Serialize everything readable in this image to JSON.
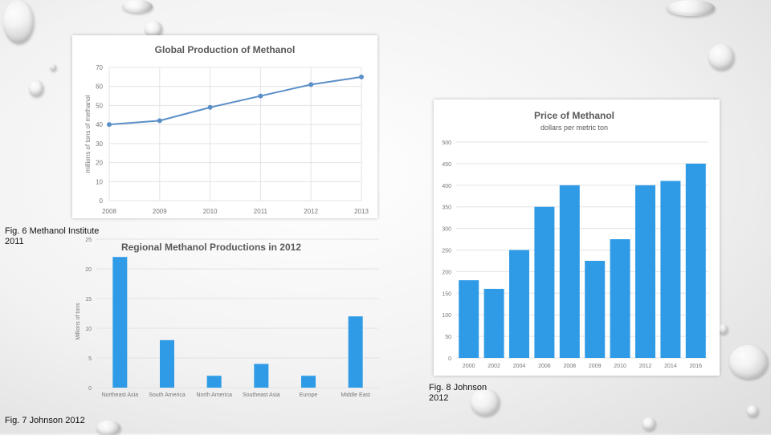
{
  "captions": {
    "fig6": "Fig. 6 Methanol Institute 2011",
    "fig7": "Fig. 7 Johnson 2012",
    "fig8": "Fig. 8 Johnson 2012"
  },
  "colors": {
    "line": "#5b8fc8",
    "bar": "#2f9be6",
    "grid": "#e3e3e3",
    "axis_text": "#777777",
    "title_text": "#595959"
  },
  "chart_data": [
    {
      "id": "global-production",
      "type": "line",
      "title": "Global Production of Methanol",
      "xlabel": "",
      "ylabel": "millions of tons of methanol",
      "x": [
        "2008",
        "2009",
        "2010",
        "2011",
        "2012",
        "2013"
      ],
      "values": [
        40,
        42,
        49,
        55,
        61,
        65
      ],
      "ylim": [
        0,
        70
      ],
      "yticks": [
        0,
        10,
        20,
        30,
        40,
        50,
        60,
        70
      ],
      "grid": true
    },
    {
      "id": "regional-production",
      "type": "bar",
      "title": "Regional Methanol Productions in 2012",
      "xlabel": "",
      "ylabel": "Millions of tons",
      "categories": [
        "Northeast Asia",
        "South America",
        "North America",
        "Southeast Asia",
        "Europe",
        "Middle East"
      ],
      "values": [
        22,
        8,
        2,
        4,
        2,
        12
      ],
      "ylim": [
        0,
        25
      ],
      "yticks": [
        0,
        5,
        10,
        15,
        20,
        25
      ],
      "grid": true
    },
    {
      "id": "price-methanol",
      "type": "bar",
      "title": "Price of Methanol",
      "subtitle": "dollars per metric ton",
      "xlabel": "",
      "ylabel": "",
      "categories": [
        "2000",
        "2002",
        "2004",
        "2006",
        "2008",
        "2009",
        "2010",
        "2012",
        "2014",
        "2016"
      ],
      "values": [
        180,
        160,
        250,
        350,
        400,
        225,
        275,
        400,
        410,
        450
      ],
      "ylim": [
        0,
        500
      ],
      "yticks": [
        0,
        50,
        100,
        150,
        200,
        250,
        300,
        350,
        400,
        450,
        500
      ],
      "grid": true
    }
  ]
}
